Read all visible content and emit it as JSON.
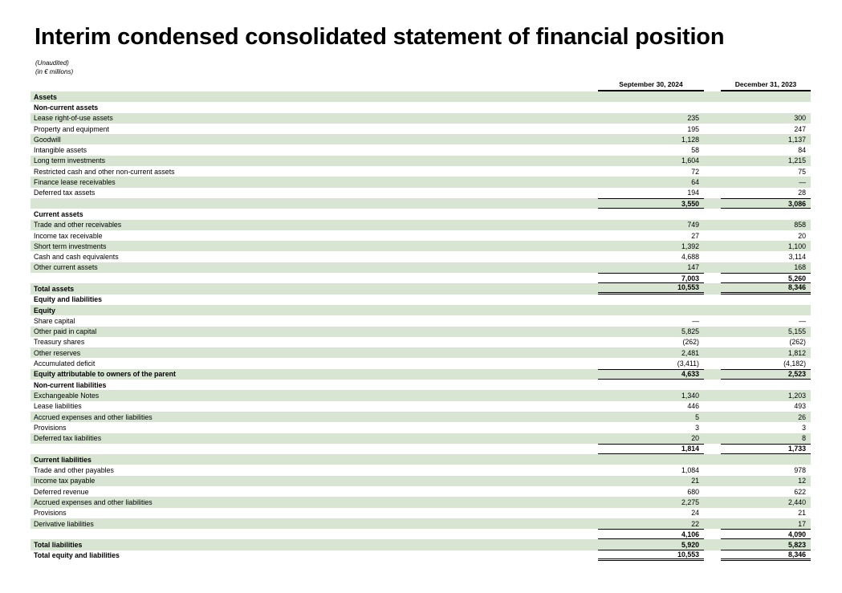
{
  "page": {
    "title": "Interim condensed consolidated statement of financial position",
    "note_unaudited": "(Unaudited)",
    "note_units": "(in € millions)"
  },
  "table": {
    "columns": [
      "September 30, 2024",
      "December 31, 2023"
    ],
    "rows": [
      {
        "label": "Assets",
        "v1": "",
        "v2": "",
        "bold": true,
        "shade": true,
        "border": "none"
      },
      {
        "label": "Non-current assets",
        "v1": "",
        "v2": "",
        "bold": true,
        "shade": false,
        "border": "none"
      },
      {
        "label": "Lease right-of-use assets",
        "v1": "235",
        "v2": "300",
        "bold": false,
        "shade": true,
        "border": "none"
      },
      {
        "label": "Property and equipment",
        "v1": "195",
        "v2": "247",
        "bold": false,
        "shade": false,
        "border": "none"
      },
      {
        "label": "Goodwill",
        "v1": "1,128",
        "v2": "1,137",
        "bold": false,
        "shade": true,
        "border": "none"
      },
      {
        "label": "Intangible assets",
        "v1": "58",
        "v2": "84",
        "bold": false,
        "shade": false,
        "border": "none"
      },
      {
        "label": "Long term investments",
        "v1": "1,604",
        "v2": "1,215",
        "bold": false,
        "shade": true,
        "border": "none"
      },
      {
        "label": "Restricted cash and other non-current assets",
        "v1": "72",
        "v2": "75",
        "bold": false,
        "shade": false,
        "border": "none"
      },
      {
        "label": "Finance lease receivables",
        "v1": "64",
        "v2": "—",
        "bold": false,
        "shade": true,
        "border": "none"
      },
      {
        "label": "Deferred tax assets",
        "v1": "194",
        "v2": "28",
        "bold": false,
        "shade": false,
        "border": "none"
      },
      {
        "label": "",
        "v1": "3,550",
        "v2": "3,086",
        "bold": true,
        "shade": true,
        "border": "tb"
      },
      {
        "label": "Current assets",
        "v1": "",
        "v2": "",
        "bold": true,
        "shade": false,
        "border": "none"
      },
      {
        "label": "Trade and other receivables",
        "v1": "749",
        "v2": "858",
        "bold": false,
        "shade": true,
        "border": "none"
      },
      {
        "label": "Income tax receivable",
        "v1": "27",
        "v2": "20",
        "bold": false,
        "shade": false,
        "border": "none"
      },
      {
        "label": "Short term investments",
        "v1": "1,392",
        "v2": "1,100",
        "bold": false,
        "shade": true,
        "border": "none"
      },
      {
        "label": "Cash and cash equivalents",
        "v1": "4,688",
        "v2": "3,114",
        "bold": false,
        "shade": false,
        "border": "none"
      },
      {
        "label": "Other current assets",
        "v1": "147",
        "v2": "168",
        "bold": false,
        "shade": true,
        "border": "none"
      },
      {
        "label": "",
        "v1": "7,003",
        "v2": "5,260",
        "bold": true,
        "shade": false,
        "border": "tb"
      },
      {
        "label": "Total assets",
        "v1": "10,553",
        "v2": "8,346",
        "bold": true,
        "shade": true,
        "border": "double"
      },
      {
        "label": "Equity and liabilities",
        "v1": "",
        "v2": "",
        "bold": true,
        "shade": false,
        "border": "none"
      },
      {
        "label": "Equity",
        "v1": "",
        "v2": "",
        "bold": true,
        "shade": true,
        "border": "none"
      },
      {
        "label": "Share capital",
        "v1": "—",
        "v2": "—",
        "bold": false,
        "shade": false,
        "border": "none"
      },
      {
        "label": "Other paid in capital",
        "v1": "5,825",
        "v2": "5,155",
        "bold": false,
        "shade": true,
        "border": "none"
      },
      {
        "label": "Treasury shares",
        "v1": "(262)",
        "v2": "(262)",
        "bold": false,
        "shade": false,
        "border": "none"
      },
      {
        "label": "Other reserves",
        "v1": "2,481",
        "v2": "1,812",
        "bold": false,
        "shade": true,
        "border": "none"
      },
      {
        "label": "Accumulated deficit",
        "v1": "(3,411)",
        "v2": "(4,182)",
        "bold": false,
        "shade": false,
        "border": "none"
      },
      {
        "label": "Equity attributable to owners of the parent",
        "v1": "4,633",
        "v2": "2,523",
        "bold": true,
        "shade": true,
        "border": "tb"
      },
      {
        "label": "Non-current liabilities",
        "v1": "",
        "v2": "",
        "bold": true,
        "shade": false,
        "border": "none"
      },
      {
        "label": "Exchangeable Notes",
        "v1": "1,340",
        "v2": "1,203",
        "bold": false,
        "shade": true,
        "border": "none"
      },
      {
        "label": "Lease liabilities",
        "v1": "446",
        "v2": "493",
        "bold": false,
        "shade": false,
        "border": "none"
      },
      {
        "label": "Accrued expenses and other liabilities",
        "v1": "5",
        "v2": "26",
        "bold": false,
        "shade": true,
        "border": "none"
      },
      {
        "label": "Provisions",
        "v1": "3",
        "v2": "3",
        "bold": false,
        "shade": false,
        "border": "none"
      },
      {
        "label": "Deferred tax liabilities",
        "v1": "20",
        "v2": "8",
        "bold": false,
        "shade": true,
        "border": "none"
      },
      {
        "label": "",
        "v1": "1,814",
        "v2": "1,733",
        "bold": true,
        "shade": false,
        "border": "tb"
      },
      {
        "label": "Current liabilities",
        "v1": "",
        "v2": "",
        "bold": true,
        "shade": true,
        "border": "none"
      },
      {
        "label": "Trade and other payables",
        "v1": "1,084",
        "v2": "978",
        "bold": false,
        "shade": false,
        "border": "none"
      },
      {
        "label": "Income tax payable",
        "v1": "21",
        "v2": "12",
        "bold": false,
        "shade": true,
        "border": "none"
      },
      {
        "label": "Deferred revenue",
        "v1": "680",
        "v2": "622",
        "bold": false,
        "shade": false,
        "border": "none"
      },
      {
        "label": "Accrued expenses and other liabilities",
        "v1": "2,275",
        "v2": "2,440",
        "bold": false,
        "shade": true,
        "border": "none"
      },
      {
        "label": "Provisions",
        "v1": "24",
        "v2": "21",
        "bold": false,
        "shade": false,
        "border": "none"
      },
      {
        "label": "Derivative liabilities",
        "v1": "22",
        "v2": "17",
        "bold": false,
        "shade": true,
        "border": "none"
      },
      {
        "label": "",
        "v1": "4,106",
        "v2": "4,090",
        "bold": true,
        "shade": false,
        "border": "tb"
      },
      {
        "label": "Total liabilities",
        "v1": "5,920",
        "v2": "5,823",
        "bold": true,
        "shade": true,
        "border": "b"
      },
      {
        "label": "Total equity and liabilities",
        "v1": "10,553",
        "v2": "8,346",
        "bold": true,
        "shade": false,
        "border": "double"
      }
    ]
  }
}
